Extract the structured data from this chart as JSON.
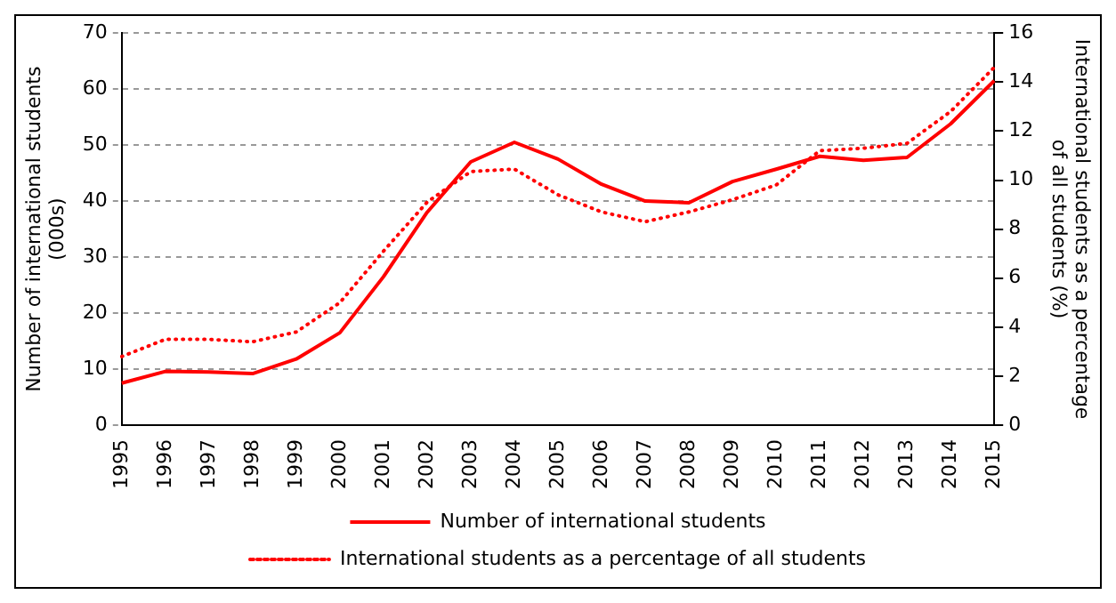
{
  "chart_data": {
    "type": "line",
    "categories": [
      "1995",
      "1996",
      "1997",
      "1998",
      "1999",
      "2000",
      "2001",
      "2002",
      "2003",
      "2004",
      "2005",
      "2006",
      "2007",
      "2008",
      "2009",
      "2010",
      "2011",
      "2012",
      "2013",
      "2014",
      "2015"
    ],
    "ylabel": "Number of international students (000s)",
    "y2label": "International students as a percentage of all students (%)",
    "series": [
      {
        "name": "Number of international students",
        "color": "#ff0000",
        "line_style": "solid",
        "values": [
          7.5,
          9.6,
          9.5,
          9.2,
          11.8,
          16.5,
          26.5,
          38,
          47,
          50.5,
          47.5,
          43,
          40,
          39.7,
          43.5,
          45.7,
          48,
          47.3,
          47.8,
          53.8,
          61.5
        ]
      },
      {
        "name": "International students as a percentage of all students",
        "color": "#ff0000",
        "line_style": "dotted",
        "axis": "y2",
        "values": [
          2.8,
          3.5,
          3.5,
          3.4,
          3.8,
          5.0,
          7.1,
          9.1,
          10.35,
          10.45,
          9.4,
          8.7,
          8.3,
          8.7,
          9.2,
          9.8,
          11.2,
          11.3,
          11.5,
          12.8,
          14.6
        ]
      }
    ],
    "ylim": [
      0,
      70
    ],
    "yticks": [
      0,
      10,
      20,
      30,
      40,
      50,
      60,
      70
    ],
    "y2lim": [
      0,
      16
    ],
    "y2ticks": [
      0,
      2,
      4,
      6,
      8,
      10,
      12,
      14,
      16
    ],
    "grid": "y",
    "legend": "bottom",
    "marker": "none"
  }
}
